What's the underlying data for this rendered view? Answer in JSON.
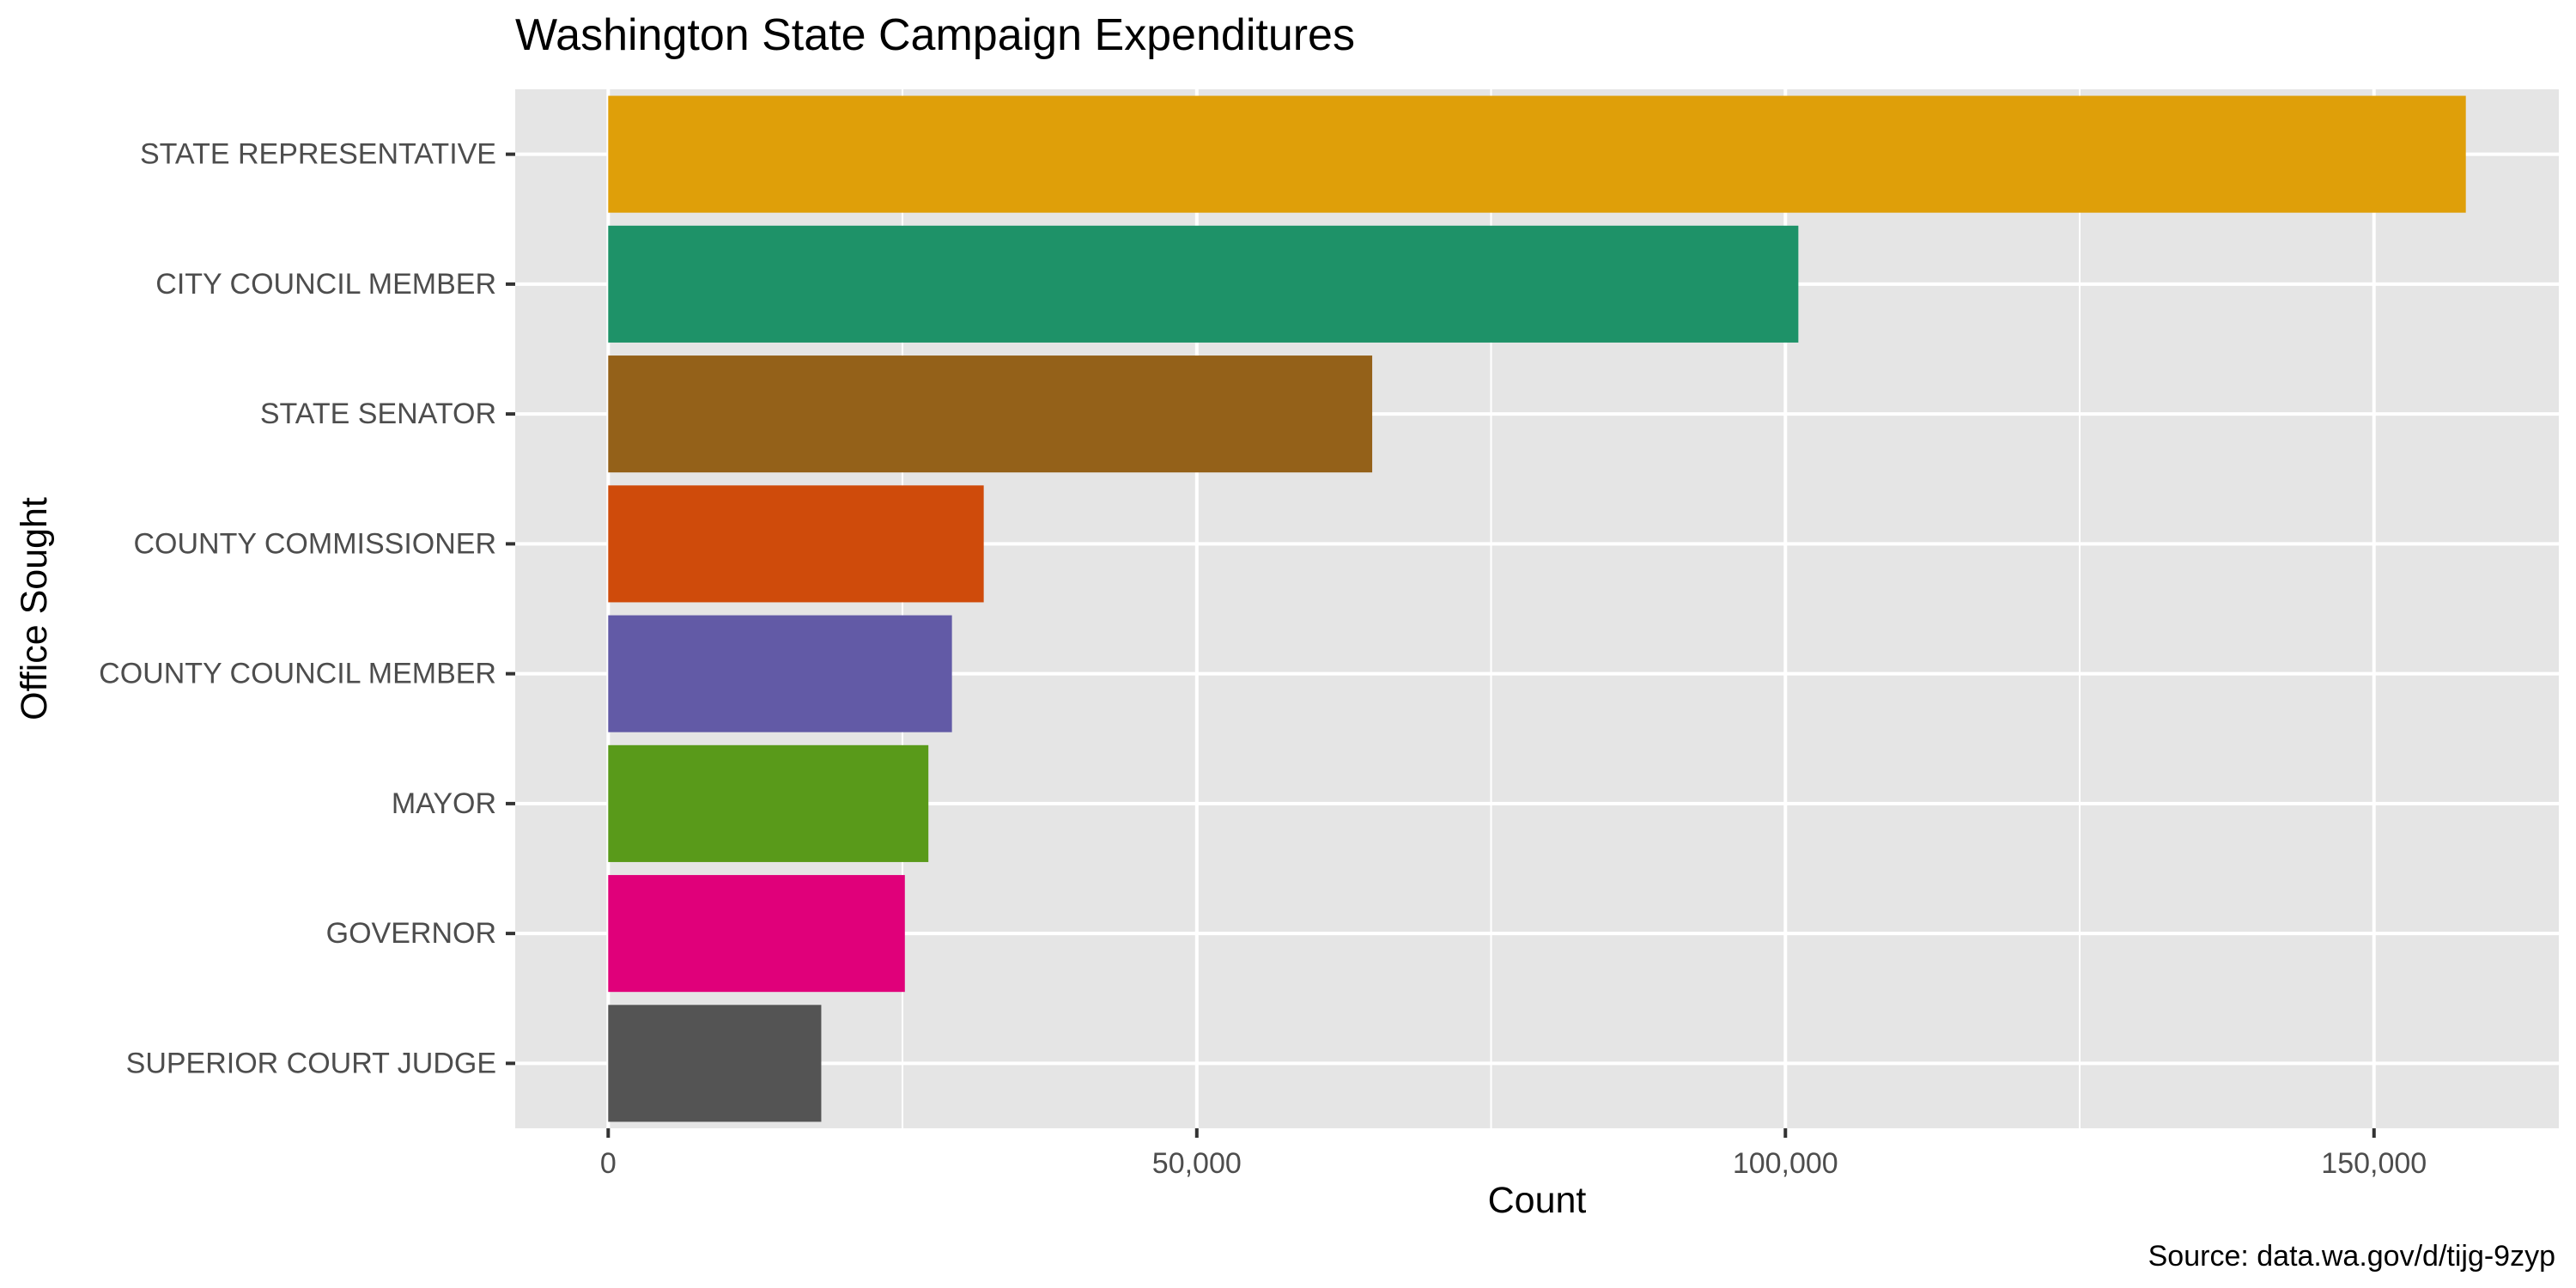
{
  "chart_data": {
    "type": "bar",
    "orientation": "horizontal",
    "title": "Washington State Campaign Expenditures",
    "xlabel": "Count",
    "ylabel": "Office Sought",
    "caption": "Source: data.wa.gov/d/tijg-9zyp",
    "categories": [
      "STATE REPRESENTATIVE",
      "CITY COUNCIL MEMBER",
      "STATE SENATOR",
      "COUNTY COMMISSIONER",
      "COUNTY COUNCIL MEMBER",
      "MAYOR",
      "GOVERNOR",
      "SUPERIOR COURT JUDGE"
    ],
    "values": [
      157800,
      101100,
      64900,
      31900,
      29200,
      27200,
      25200,
      18100
    ],
    "colors": [
      "#DF9F09",
      "#1E9268",
      "#946119",
      "#CF4B0B",
      "#625AA6",
      "#599A1A",
      "#E0007A",
      "#545454"
    ],
    "xlim": [
      -7900,
      165700
    ],
    "x_ticks": [
      0,
      50000,
      100000,
      150000
    ],
    "x_tick_labels": [
      "0",
      "50,000",
      "100,000",
      "150,000"
    ],
    "grid": true,
    "legend": "none",
    "panel_background": "#E5E5E5",
    "grid_color": "#FFFFFF"
  }
}
